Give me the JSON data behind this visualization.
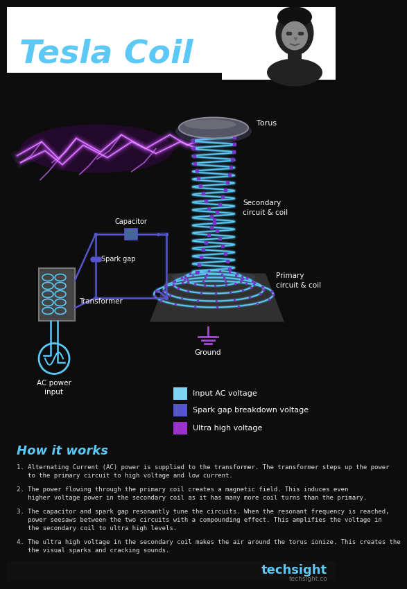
{
  "title": "Tesla Coil",
  "title_color": "#5bc8f5",
  "bg_color": "#0d0d0d",
  "header_bg": "#ffffff",
  "how_it_works_title": "How it works",
  "how_it_works_color": "#5bc8f5",
  "legend_items": [
    {
      "label": "Input AC voltage",
      "color": "#7fd4f5"
    },
    {
      "label": "Spark gap breakdown voltage",
      "color": "#5555cc"
    },
    {
      "label": "Ultra high voltage",
      "color": "#9933cc"
    }
  ],
  "labels": {
    "torus": "Torus",
    "secondary": "Secondary\ncircuit & coil",
    "primary": "Primary\ncircuit & coil",
    "capacitor": "Capacitor",
    "spark_gap": "Spark gap",
    "transformer": "Transformer",
    "ground": "Ground",
    "ac_power": "AC power\ninput"
  },
  "steps": [
    "1. Alternating Current (AC) power is supplied to the transformer. The transformer steps up the power\n   to the primary circuit to high voltage and low current.",
    "2. The power flowing through the primary coil creates a magnetic field. This induces even\n   higher voltage power in the secondary coil as it has many more coil turns than the primary.",
    "3. The capacitor and spark gap resonantly tune the circuits. When the resonant frequency is reached,\n   power seesaws between the two circuits with a compounding effect. This amplifies the voltage in\n   the secondary coil to ultra high levels.",
    "4. The ultra high voltage in the secondary coil makes the air around the torus ionize. This creates the\n   the visual sparks and cracking sounds."
  ],
  "footer": "techsight",
  "footer_sub": "techsight.co",
  "wire_color": "#5bc8f5",
  "wire_color2": "#5555cc",
  "coil_color": "#5bc8f5",
  "spark_color": "#cc55ff"
}
